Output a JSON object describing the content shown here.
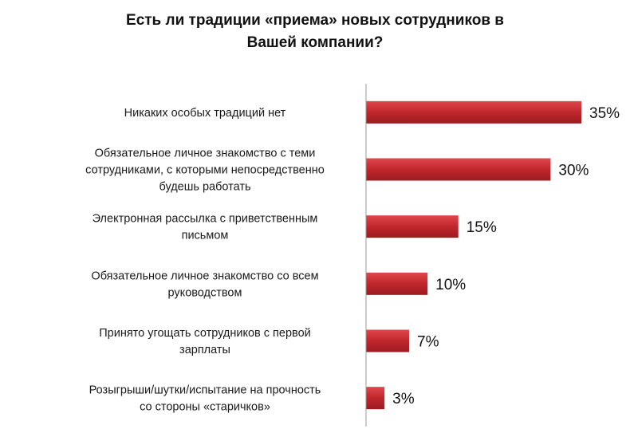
{
  "chart_data": {
    "type": "bar",
    "orientation": "horizontal",
    "title_lines": [
      "Есть ли традиции «приема» новых сотрудников в",
      "Вашей компании?"
    ],
    "categories": [
      [
        "Никаких особых традиций нет"
      ],
      [
        "Обязательное личное знакомство с теми",
        "сотрудниками, с которыми непосредственно",
        "будешь работать"
      ],
      [
        "Электронная рассылка с приветственным",
        "письмом"
      ],
      [
        "Обязательное личное знакомство со всем",
        "руководством"
      ],
      [
        "Принято угощать сотрудников с первой",
        "зарплаты"
      ],
      [
        "Розыгрыши/шутки/испытание на прочность",
        "со стороны «старичков»"
      ]
    ],
    "values": [
      35,
      30,
      15,
      10,
      7,
      3
    ],
    "value_labels": [
      "35%",
      "30%",
      "15%",
      "10%",
      "7%",
      "3%"
    ],
    "xlim": [
      0,
      35
    ],
    "grid": false,
    "bar_color": "#c0272d"
  }
}
